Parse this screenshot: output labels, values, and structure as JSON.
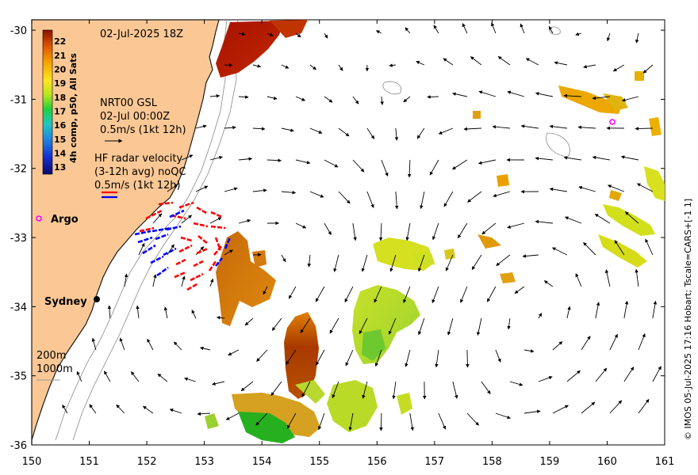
{
  "map": {
    "date_title": "02-Jul-2025 18Z",
    "credit": "© IMOS 05-Jul-2025 17:16 Hobart; Tscale=CARS+[-1 1]",
    "lon_ticks": [
      "150",
      "151",
      "152",
      "153",
      "154",
      "155",
      "156",
      "157",
      "158",
      "159",
      "160",
      "161"
    ],
    "lat_ticks": [
      "-30",
      "-31",
      "-32",
      "-33",
      "-34",
      "-35",
      "-36"
    ],
    "lon_range": [
      150,
      161
    ],
    "lat_range": [
      -36,
      -29.85
    ],
    "colorbar": {
      "title": "4h comp, p50, All Sats",
      "ticks": [
        "22",
        "21",
        "20",
        "19",
        "18",
        "17",
        "16",
        "15",
        "14",
        "13"
      ],
      "range": [
        12.5,
        22.8
      ]
    },
    "altimetry_legend": {
      "line1": "NRT00 GSL",
      "line2": "02-Jul 00:00Z",
      "line3": "0.5m/s (1kt 12h)"
    },
    "hf_radar_legend": {
      "line1": "HF radar velocity",
      "line2": "(3-12h avg) noQC",
      "line3": "0.5m/s (1kt 12h)"
    },
    "places": {
      "argo_label": "Argo",
      "sydney_label": "Sydney"
    },
    "isobath_legend": {
      "line1": "200m",
      "line2": "1000m"
    },
    "colors": {
      "land": "#fbc895",
      "hf_red": "#ff0000",
      "hf_blue": "#0000ff",
      "argo": "#ff00ff"
    }
  }
}
